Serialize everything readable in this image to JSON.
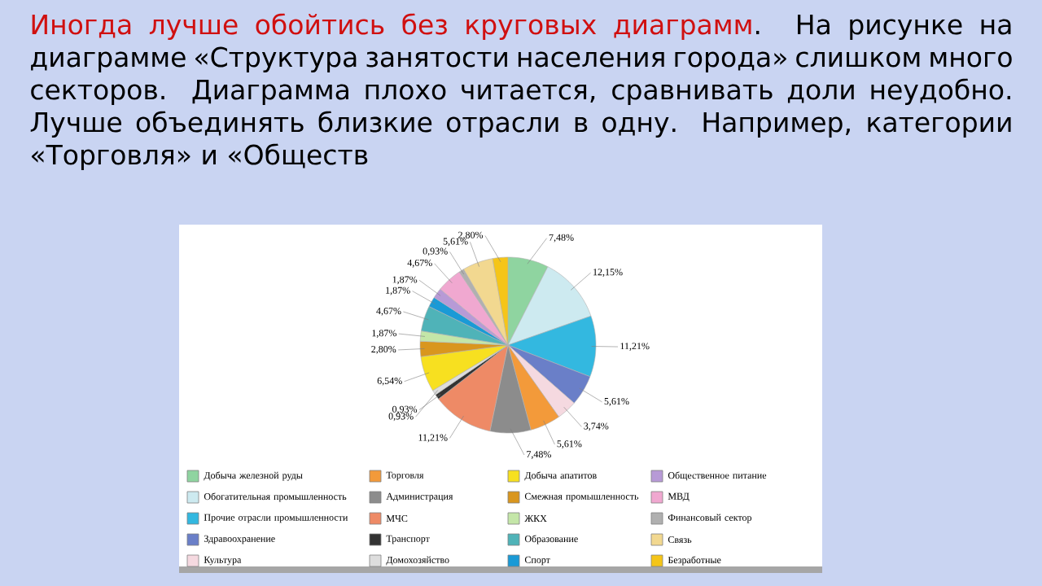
{
  "chart_data": {
    "type": "pie",
    "title": "Иногда лучше обойтись без круговых диаграмм",
    "annotations": [
      ". На рисунке на диаграмме «Структура занятости населения города» слишком много секторов. Диаграмма плохо читается, сравнивать доли неудобно. Лучше объединять близкие отрасли в одну. Например, категории «Торговля» и «Обществ"
    ],
    "categories": [
      "Добыча железной руды",
      "Обогатительная промышленность",
      "Прочие отрасли промышленности",
      "Здравоохранение",
      "Культура",
      "Торговля",
      "Администрация",
      "МЧС",
      "Транспорт",
      "Домохозяйство",
      "Добыча апатитов",
      "Смежная промышленность",
      "ЖКХ",
      "Образование",
      "Спорт",
      "Общественное питание",
      "МВД",
      "Финансовый сектор",
      "Связь",
      "Безработные"
    ],
    "values": [
      7.48,
      12.15,
      11.21,
      5.61,
      3.74,
      5.61,
      7.48,
      11.21,
      0.93,
      0.93,
      6.54,
      2.8,
      1.87,
      4.67,
      1.87,
      1.87,
      4.67,
      0.93,
      5.61,
      2.8
    ],
    "value_labels": [
      "7,48%",
      "12,15%",
      "11,21%",
      "5,61%",
      "3,74%",
      "5,61%",
      "7,48%",
      "11,21%",
      "0,93%",
      "0,93%",
      "6,54%",
      "2,80%",
      "1,87%",
      "4,67%",
      "1,87%",
      "1,87%",
      "4,67%",
      "0,93%",
      "5,61%",
      "2,80%"
    ],
    "colors": [
      "#8fd4a0",
      "#cdeaf0",
      "#33b8e0",
      "#6a7fc8",
      "#f5d9e0",
      "#f39a3a",
      "#8c8c8c",
      "#ee8a66",
      "#333333",
      "#dddddd",
      "#f7e020",
      "#d9961e",
      "#c4e6a8",
      "#4fb3b8",
      "#1a9ad6",
      "#b79ad6",
      "#f0a8d0",
      "#b0b0b0",
      "#f2d890",
      "#f5c518"
    ],
    "legend": "bottom"
  }
}
